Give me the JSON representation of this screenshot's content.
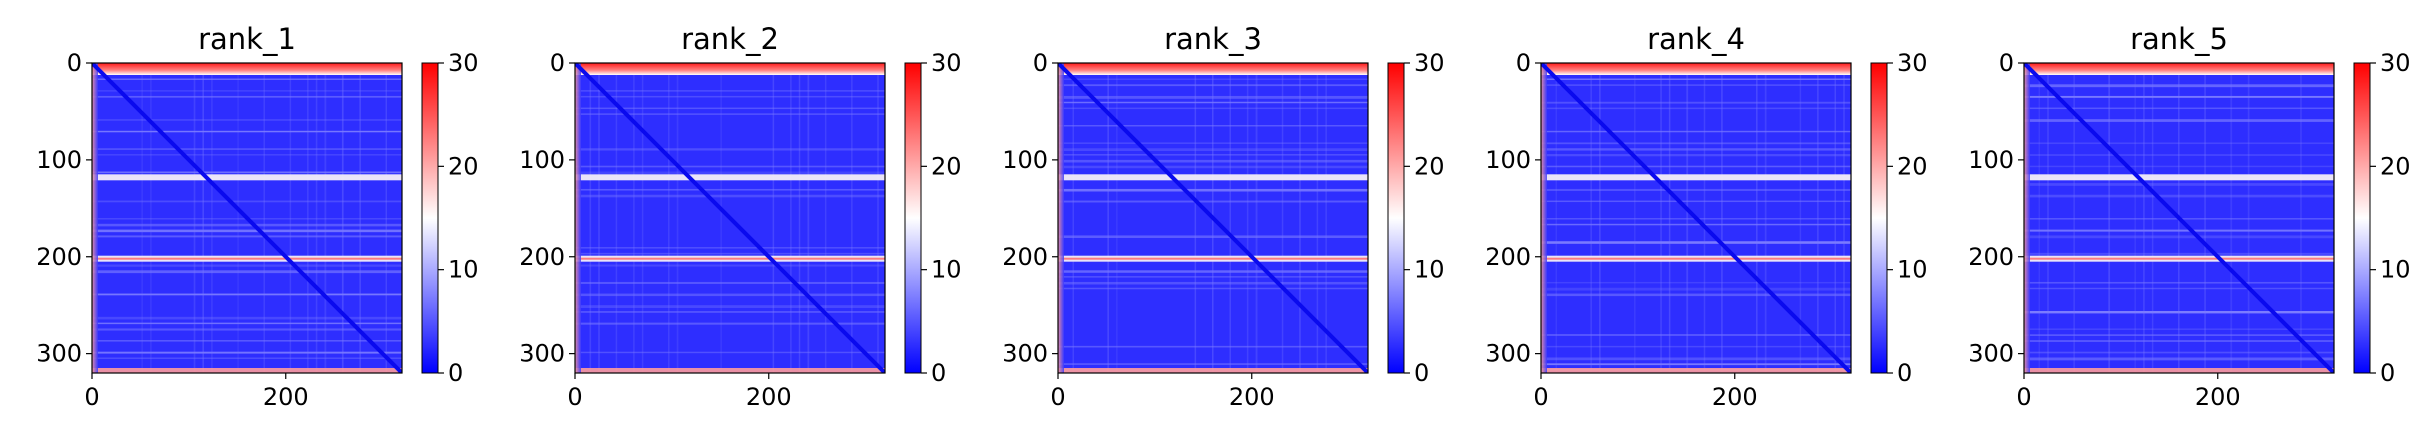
{
  "chart_data": [
    {
      "type": "heatmap",
      "title": "rank_1",
      "x_ticks": [
        0,
        200
      ],
      "y_ticks": [
        0,
        100,
        200,
        300
      ],
      "xlim": [
        0,
        320
      ],
      "ylim": [
        320,
        0
      ],
      "colorbar": {
        "range": [
          0,
          30
        ],
        "ticks": [
          0,
          10,
          20,
          30
        ],
        "colormap": "bwr"
      },
      "bright_rows": [
        118,
        202
      ],
      "red_edges": true
    },
    {
      "type": "heatmap",
      "title": "rank_2",
      "x_ticks": [
        0,
        200
      ],
      "y_ticks": [
        0,
        100,
        200,
        300
      ],
      "xlim": [
        0,
        320
      ],
      "ylim": [
        320,
        0
      ],
      "colorbar": {
        "range": [
          0,
          30
        ],
        "ticks": [
          0,
          10,
          20,
          30
        ],
        "colormap": "bwr"
      },
      "bright_rows": [
        118,
        202
      ],
      "red_edges": true
    },
    {
      "type": "heatmap",
      "title": "rank_3",
      "x_ticks": [
        0,
        200
      ],
      "y_ticks": [
        0,
        100,
        200,
        300
      ],
      "xlim": [
        0,
        320
      ],
      "ylim": [
        320,
        0
      ],
      "colorbar": {
        "range": [
          0,
          30
        ],
        "ticks": [
          0,
          10,
          20,
          30
        ],
        "colormap": "bwr"
      },
      "bright_rows": [
        118,
        202
      ],
      "red_edges": true
    },
    {
      "type": "heatmap",
      "title": "rank_4",
      "x_ticks": [
        0,
        200
      ],
      "y_ticks": [
        0,
        100,
        200,
        300
      ],
      "xlim": [
        0,
        320
      ],
      "ylim": [
        320,
        0
      ],
      "colorbar": {
        "range": [
          0,
          30
        ],
        "ticks": [
          0,
          10,
          20,
          30
        ],
        "colormap": "bwr"
      },
      "bright_rows": [
        118,
        202
      ],
      "red_edges": true
    },
    {
      "type": "heatmap",
      "title": "rank_5",
      "x_ticks": [
        0,
        200
      ],
      "y_ticks": [
        0,
        100,
        200,
        300
      ],
      "xlim": [
        0,
        320
      ],
      "ylim": [
        320,
        0
      ],
      "colorbar": {
        "range": [
          0,
          30
        ],
        "ticks": [
          0,
          10,
          20,
          30
        ],
        "colormap": "bwr"
      },
      "bright_rows": [
        118,
        202
      ],
      "red_edges": true
    }
  ],
  "colors": {
    "low": "#0000ff",
    "mid": "#ffffff",
    "high": "#ff0000"
  }
}
